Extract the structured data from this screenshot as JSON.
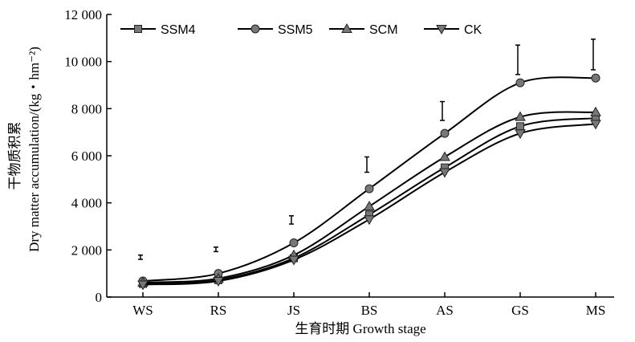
{
  "chart_data": {
    "type": "line",
    "xlabel": "生育时期 Growth stage",
    "ylabel": "干物质积累",
    "ylabel2": "Dry matter accumulation/(kg・hm⁻²)",
    "categories": [
      "WS",
      "RS",
      "JS",
      "BS",
      "AS",
      "GS",
      "MS"
    ],
    "ylim": [
      0,
      12000
    ],
    "yticks": [
      0,
      2000,
      4000,
      6000,
      8000,
      10000,
      12000
    ],
    "ytick_labels": [
      "0",
      "2 000",
      "4 000",
      "6 000",
      "8 000",
      "10 000",
      "12 000"
    ],
    "legend_position": "top-left",
    "series": [
      {
        "name": "SSM4",
        "marker": "square",
        "values": [
          560,
          720,
          1650,
          3500,
          5500,
          7250,
          7600
        ]
      },
      {
        "name": "SSM5",
        "marker": "circle",
        "values": [
          680,
          1000,
          2300,
          4600,
          6950,
          9100,
          9300
        ]
      },
      {
        "name": "SCM",
        "marker": "triangle-up",
        "values": [
          620,
          790,
          1780,
          3850,
          5950,
          7650,
          7850
        ]
      },
      {
        "name": "CK",
        "marker": "triangle-down",
        "values": [
          530,
          680,
          1580,
          3300,
          5300,
          6950,
          7350
        ]
      }
    ],
    "error_bars": [
      {
        "category": "WS",
        "low": 1600,
        "high": 1780
      },
      {
        "category": "RS",
        "low": 1930,
        "high": 2120
      },
      {
        "category": "JS",
        "low": 3100,
        "high": 3450
      },
      {
        "category": "BS",
        "low": 5300,
        "high": 5950
      },
      {
        "category": "AS",
        "low": 7500,
        "high": 8300
      },
      {
        "category": "GS",
        "low": 9450,
        "high": 10700
      },
      {
        "category": "MS",
        "low": 9650,
        "high": 10950
      }
    ]
  }
}
